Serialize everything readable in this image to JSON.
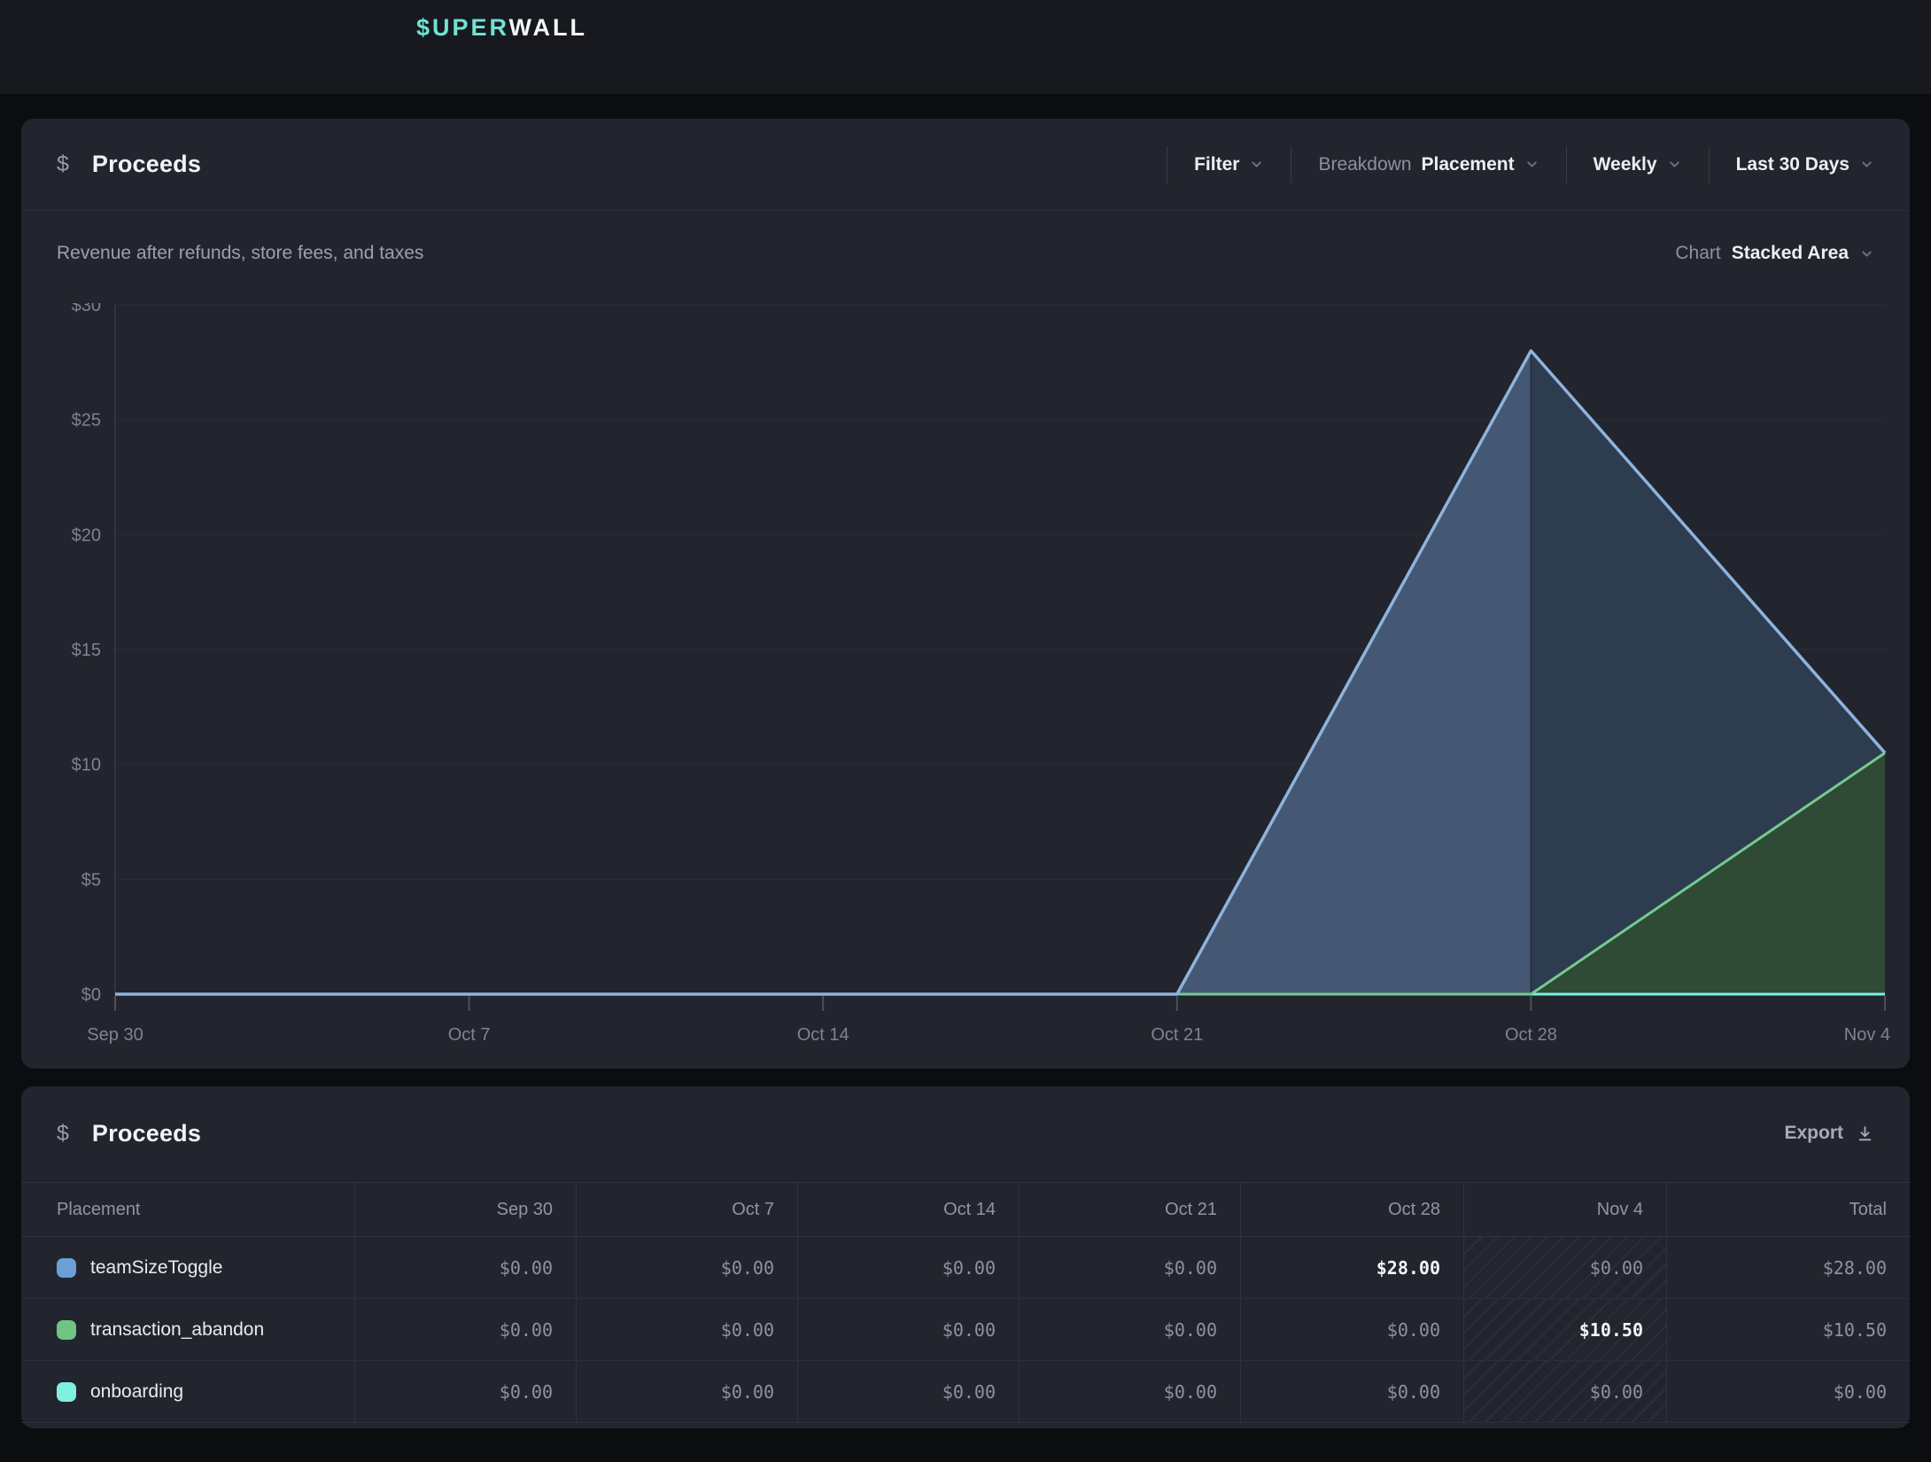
{
  "topbar": {
    "logo_primary": "$UPER",
    "logo_secondary": "WALL"
  },
  "icons": {
    "dollar": "$"
  },
  "chart_card": {
    "title": "Proceeds",
    "subtitle": "Revenue after refunds, store fees, and taxes",
    "controls": {
      "filter": "Filter",
      "breakdown_label": "Breakdown",
      "breakdown_value": "Placement",
      "interval": "Weekly",
      "range": "Last 30 Days",
      "chart_label": "Chart",
      "chart_type": "Stacked Area"
    }
  },
  "chart_data": {
    "type": "area",
    "stacked": true,
    "title": "Proceeds",
    "x": [
      "Sep 30",
      "Oct 7",
      "Oct 14",
      "Oct 21",
      "Oct 28",
      "Nov 4"
    ],
    "series": [
      {
        "name": "teamSizeToggle",
        "color": "#6d9ed6",
        "values": [
          0,
          0,
          0,
          0,
          28,
          0
        ]
      },
      {
        "name": "transaction_abandon",
        "color": "#70c584",
        "values": [
          0,
          0,
          0,
          0,
          0,
          10.5
        ]
      },
      {
        "name": "onboarding",
        "color": "#7ef2df",
        "values": [
          0,
          0,
          0,
          0,
          0,
          0
        ]
      }
    ],
    "ylabel_ticks": [
      "$0",
      "$5",
      "$10",
      "$15",
      "$20",
      "$25",
      "$30"
    ],
    "ylim": [
      0,
      30
    ],
    "grid": true,
    "legend": "none"
  },
  "table_card": {
    "title": "Proceeds",
    "export_label": "Export",
    "columns": [
      "Placement",
      "Sep 30",
      "Oct 7",
      "Oct 14",
      "Oct 21",
      "Oct 28",
      "Nov 4",
      "Total"
    ],
    "hatched_column": "Nov 4",
    "rows": [
      {
        "name": "teamSizeToggle",
        "swatch": "#6d9ed6",
        "values": [
          "$0.00",
          "$0.00",
          "$0.00",
          "$0.00",
          "$28.00",
          "$0.00",
          "$28.00"
        ],
        "highlight": [
          4
        ]
      },
      {
        "name": "transaction_abandon",
        "swatch": "#70c584",
        "values": [
          "$0.00",
          "$0.00",
          "$0.00",
          "$0.00",
          "$0.00",
          "$10.50",
          "$10.50"
        ],
        "highlight": [
          5
        ]
      },
      {
        "name": "onboarding",
        "swatch": "#7ef2df",
        "values": [
          "$0.00",
          "$0.00",
          "$0.00",
          "$0.00",
          "$0.00",
          "$0.00",
          "$0.00"
        ],
        "highlight": []
      }
    ]
  },
  "colors": {
    "accent_teal": "#6fe3d2",
    "page_bg": "#0c0d11",
    "topbar_bg": "#17191f",
    "card_bg": "#22252d",
    "grid": "#2a2e37",
    "axis": "#353b46",
    "tick": "#4a505b",
    "label": "#7d8491",
    "blue_line": "#8db4de",
    "blue_fill_left": "#455873",
    "blue_fill_right": "#2e3c50",
    "peak_divider": "#273040",
    "green_line": "#74cb8f",
    "green_fill": "#2f4a35",
    "cyan_line": "#7df2e0"
  }
}
